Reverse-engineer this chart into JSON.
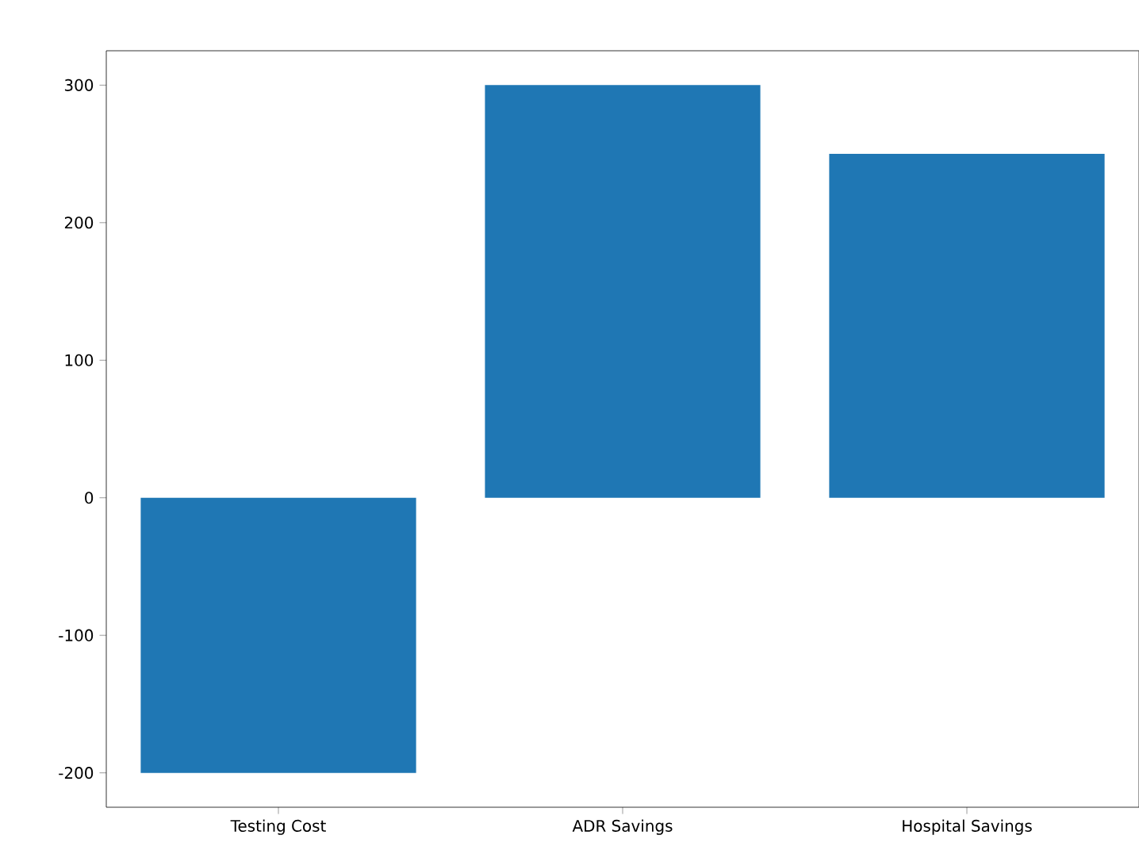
{
  "chart_data": {
    "type": "bar",
    "categories": [
      "Testing Cost",
      "ADR Savings",
      "Hospital Savings"
    ],
    "values": [
      -200,
      300,
      250
    ],
    "color": "#1f77b4",
    "ylim": [
      -225,
      325
    ],
    "yticks": [
      -200,
      -100,
      0,
      100,
      200,
      300
    ]
  }
}
